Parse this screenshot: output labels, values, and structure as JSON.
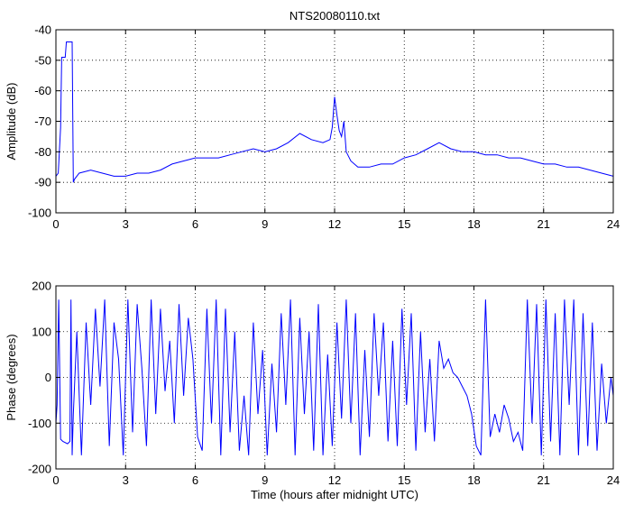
{
  "figure": {
    "title": "NTS20080110.txt"
  },
  "colors": {
    "trace": "#0000ff",
    "axis": "#000000",
    "grid": "#000000",
    "background": "#ffffff"
  },
  "chart_data": [
    {
      "type": "line",
      "title": "NTS20080110.txt",
      "xlabel": "",
      "ylabel": "Amplitude (dB)",
      "xlim": [
        0,
        24
      ],
      "ylim": [
        -100,
        -40
      ],
      "xticks": [
        0,
        3,
        6,
        9,
        12,
        15,
        18,
        21,
        24
      ],
      "yticks": [
        -100,
        -90,
        -80,
        -70,
        -60,
        -50,
        -40
      ],
      "grid": true,
      "series": [
        {
          "color": "#0000ff",
          "x": [
            0.0,
            0.1,
            0.2,
            0.25,
            0.3,
            0.35,
            0.4,
            0.45,
            0.5,
            0.6,
            0.65,
            0.7,
            0.75,
            0.8,
            1.0,
            1.5,
            2.0,
            2.5,
            3.0,
            3.5,
            4.0,
            4.5,
            5.0,
            5.5,
            6.0,
            6.5,
            7.0,
            7.5,
            8.0,
            8.5,
            9.0,
            9.5,
            10.0,
            10.5,
            11.0,
            11.5,
            11.8,
            11.9,
            12.0,
            12.1,
            12.2,
            12.3,
            12.4,
            12.5,
            12.7,
            13.0,
            13.5,
            14.0,
            14.5,
            15.0,
            15.5,
            16.0,
            16.5,
            17.0,
            17.5,
            18.0,
            18.5,
            19.0,
            19.5,
            20.0,
            20.5,
            21.0,
            21.5,
            22.0,
            22.5,
            23.0,
            23.5,
            24.0
          ],
          "y": [
            -88,
            -87,
            -72,
            -49,
            -49,
            -49,
            -49,
            -44,
            -44,
            -44,
            -44,
            -44,
            -90,
            -89,
            -87,
            -86,
            -87,
            -88,
            -88,
            -87,
            -87,
            -86,
            -84,
            -83,
            -82,
            -82,
            -82,
            -81,
            -80,
            -79,
            -80,
            -79,
            -77,
            -74,
            -76,
            -77,
            -76,
            -72,
            -62,
            -68,
            -73,
            -75,
            -70,
            -80,
            -83,
            -85,
            -85,
            -84,
            -84,
            -82,
            -81,
            -79,
            -77,
            -79,
            -80,
            -80,
            -81,
            -81,
            -82,
            -82,
            -83,
            -84,
            -84,
            -85,
            -85,
            -86,
            -87,
            -88
          ]
        }
      ]
    },
    {
      "type": "line",
      "title": "",
      "xlabel": "Time (hours after midnight UTC)",
      "ylabel": "Phase (degrees)",
      "xlim": [
        0,
        24
      ],
      "ylim": [
        -200,
        200
      ],
      "xticks": [
        0,
        3,
        6,
        9,
        12,
        15,
        18,
        21,
        24
      ],
      "yticks": [
        -200,
        -100,
        0,
        100,
        200
      ],
      "grid": true,
      "series": [
        {
          "color": "#0000ff",
          "x": [
            0.0,
            0.05,
            0.12,
            0.2,
            0.3,
            0.5,
            0.6,
            0.65,
            0.7,
            0.75,
            0.9,
            1.1,
            1.3,
            1.5,
            1.7,
            1.9,
            2.1,
            2.3,
            2.5,
            2.7,
            2.9,
            3.1,
            3.3,
            3.5,
            3.7,
            3.9,
            4.1,
            4.3,
            4.5,
            4.7,
            4.9,
            5.1,
            5.3,
            5.5,
            5.7,
            5.9,
            6.1,
            6.3,
            6.5,
            6.7,
            6.9,
            7.1,
            7.3,
            7.5,
            7.7,
            7.9,
            8.1,
            8.3,
            8.5,
            8.7,
            8.9,
            9.1,
            9.3,
            9.5,
            9.7,
            9.9,
            10.1,
            10.3,
            10.5,
            10.7,
            10.9,
            11.1,
            11.3,
            11.5,
            11.7,
            11.9,
            12.1,
            12.3,
            12.5,
            12.7,
            12.9,
            13.1,
            13.3,
            13.5,
            13.7,
            13.9,
            14.1,
            14.3,
            14.5,
            14.7,
            14.9,
            15.1,
            15.3,
            15.5,
            15.7,
            15.9,
            16.1,
            16.3,
            16.5,
            16.7,
            16.9,
            17.1,
            17.3,
            17.5,
            17.7,
            17.9,
            18.1,
            18.3,
            18.5,
            18.7,
            18.9,
            19.1,
            19.3,
            19.5,
            19.7,
            19.9,
            20.1,
            20.3,
            20.5,
            20.7,
            20.9,
            21.1,
            21.3,
            21.5,
            21.7,
            21.9,
            22.1,
            22.3,
            22.5,
            22.7,
            22.9,
            23.1,
            23.3,
            23.5,
            23.7,
            23.9,
            24.0
          ],
          "y": [
            -100,
            -60,
            170,
            -135,
            -140,
            -145,
            -140,
            170,
            -170,
            -80,
            100,
            -170,
            120,
            -60,
            150,
            -20,
            170,
            -150,
            120,
            40,
            -170,
            170,
            -120,
            160,
            20,
            -150,
            170,
            -80,
            150,
            -30,
            80,
            -100,
            160,
            -40,
            130,
            40,
            -130,
            -160,
            150,
            -100,
            170,
            -170,
            150,
            -120,
            100,
            -160,
            -40,
            -170,
            120,
            -80,
            60,
            -170,
            30,
            -120,
            140,
            -60,
            170,
            -170,
            130,
            -80,
            100,
            -160,
            160,
            -170,
            50,
            -150,
            120,
            -90,
            170,
            -100,
            140,
            -170,
            60,
            -130,
            140,
            -40,
            120,
            -140,
            80,
            -150,
            150,
            -60,
            140,
            -160,
            100,
            -120,
            40,
            -140,
            80,
            20,
            40,
            10,
            0,
            -20,
            -40,
            -80,
            -150,
            -170,
            170,
            -130,
            -80,
            -120,
            -60,
            -90,
            -140,
            -120,
            -160,
            170,
            -100,
            160,
            -170,
            170,
            -140,
            140,
            -170,
            170,
            -60,
            170,
            -170,
            140,
            -150,
            120,
            -160,
            30,
            -100,
            0,
            -40
          ]
        }
      ]
    }
  ]
}
